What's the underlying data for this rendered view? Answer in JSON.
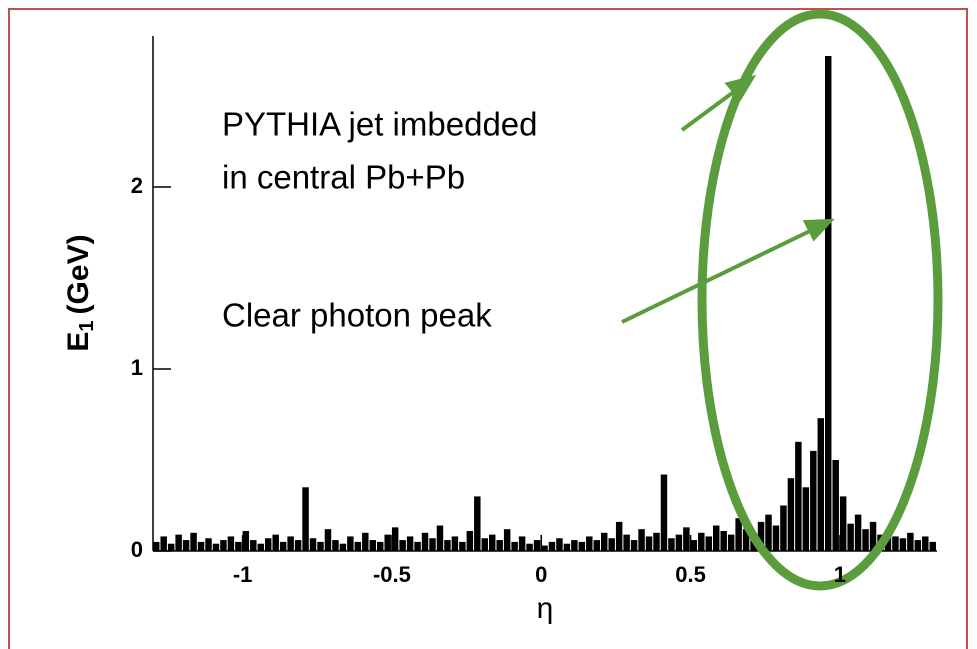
{
  "chart_data": {
    "type": "histogram",
    "annotations": [
      "PYTHIA jet imbedded",
      "in central Pb+Pb",
      "Clear photon peak"
    ],
    "ylabel": [
      "E",
      "1",
      "(GeV)"
    ],
    "xlabel": "η",
    "color": "#000000",
    "bins": [
      -1.3,
      -1.275,
      -1.25,
      -1.225,
      -1.2,
      -1.175,
      -1.15,
      -1.125,
      -1.1,
      -1.075,
      -1.05,
      -1.025,
      -1,
      -0.975,
      -0.95,
      -0.925,
      -0.9,
      -0.875,
      -0.85,
      -0.825,
      -0.8,
      -0.775,
      -0.75,
      -0.725,
      -0.7,
      -0.675,
      -0.65,
      -0.625,
      -0.6,
      -0.575,
      -0.55,
      -0.525,
      -0.5,
      -0.475,
      -0.45,
      -0.425,
      -0.4,
      -0.375,
      -0.35,
      -0.325,
      -0.3,
      -0.275,
      -0.25,
      -0.225,
      -0.2,
      -0.175,
      -0.15,
      -0.125,
      -0.1,
      -0.075,
      -0.05,
      -0.025,
      0,
      0.025,
      0.05,
      0.075,
      0.1,
      0.125,
      0.15,
      0.175,
      0.2,
      0.225,
      0.25,
      0.275,
      0.3,
      0.325,
      0.35,
      0.375,
      0.4,
      0.425,
      0.45,
      0.475,
      0.5,
      0.525,
      0.55,
      0.575,
      0.6,
      0.625,
      0.65,
      0.675,
      0.7,
      0.725,
      0.75,
      0.775,
      0.8,
      0.825,
      0.85,
      0.875,
      0.9,
      0.925,
      0.95,
      0.975,
      1,
      1.025,
      1.05,
      1.075,
      1.1,
      1.125,
      1.15,
      1.175,
      1.2,
      1.225,
      1.25,
      1.275,
      1.3,
      1.325
    ],
    "values": [
      0.05,
      0.08,
      0.04,
      0.09,
      0.06,
      0.1,
      0.05,
      0.07,
      0.04,
      0.06,
      0.08,
      0.05,
      0.11,
      0.06,
      0.04,
      0.07,
      0.09,
      0.05,
      0.08,
      0.06,
      0.35,
      0.07,
      0.05,
      0.12,
      0.06,
      0.04,
      0.08,
      0.05,
      0.1,
      0.06,
      0.05,
      0.09,
      0.13,
      0.06,
      0.08,
      0.05,
      0.1,
      0.07,
      0.14,
      0.06,
      0.08,
      0.05,
      0.11,
      0.3,
      0.07,
      0.09,
      0.06,
      0.12,
      0.05,
      0.08,
      0.04,
      0.06,
      0.03,
      0.05,
      0.07,
      0.04,
      0.06,
      0.05,
      0.08,
      0.06,
      0.1,
      0.07,
      0.16,
      0.09,
      0.06,
      0.12,
      0.08,
      0.1,
      0.42,
      0.07,
      0.09,
      0.13,
      0.06,
      0.1,
      0.08,
      0.14,
      0.11,
      0.09,
      0.18,
      0.12,
      0.1,
      0.16,
      0.2,
      0.14,
      0.25,
      0.4,
      0.6,
      0.35,
      0.55,
      0.73,
      2.72,
      0.5,
      0.3,
      0.15,
      0.2,
      0.12,
      0.16,
      0.09,
      0.11,
      0.08,
      0.07,
      0.1,
      0.06,
      0.08,
      0.05
    ],
    "xlim": [
      -1.3,
      1.325
    ],
    "ylim": [
      0,
      2.83
    ],
    "xticks": [
      -1,
      -0.5,
      0,
      0.5,
      1
    ],
    "yticks": [
      0,
      1,
      2
    ]
  }
}
